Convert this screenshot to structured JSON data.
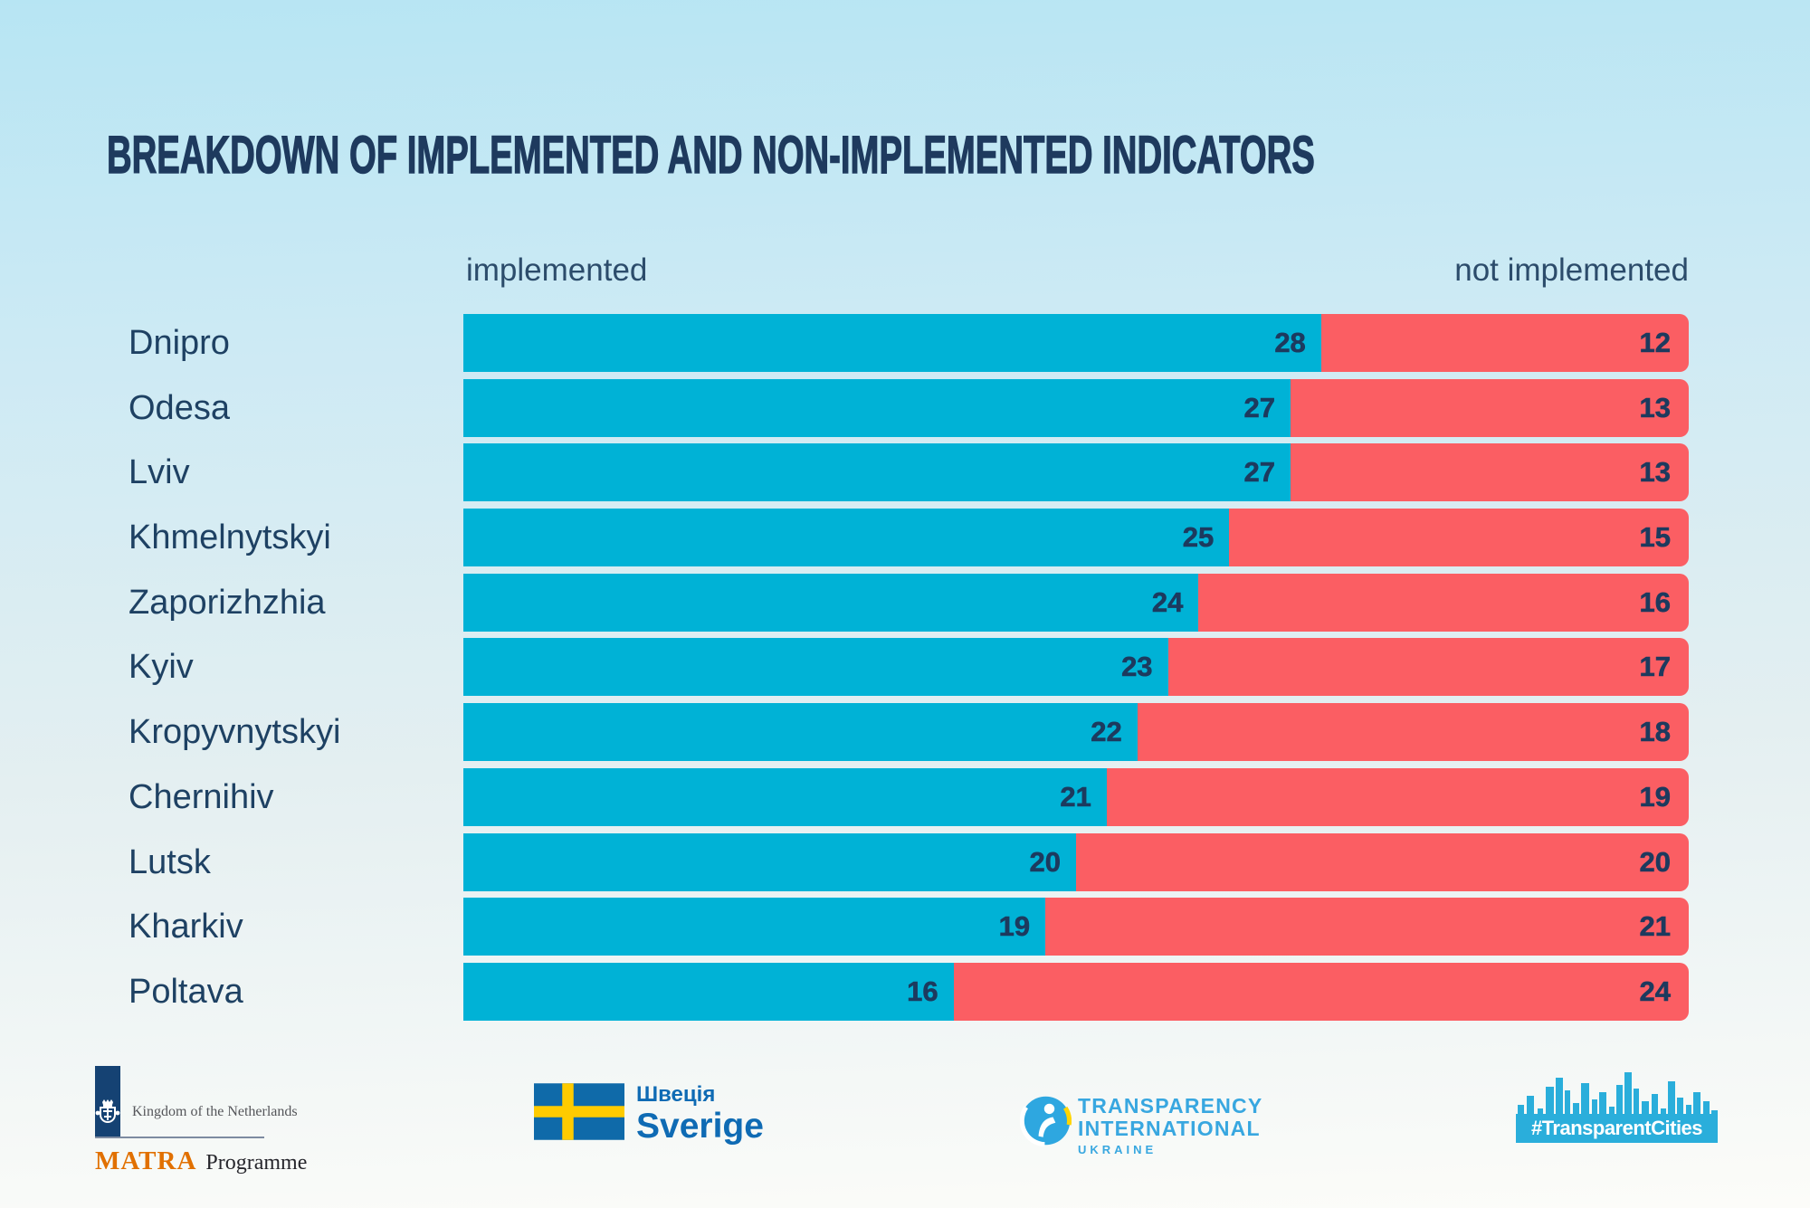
{
  "title": "BREAKDOWN OF IMPLEMENTED AND NON-IMPLEMENTED INDICATORS",
  "legend": {
    "implemented": "implemented",
    "not_implemented": "not implemented"
  },
  "chart_data": {
    "type": "bar",
    "stacked": true,
    "orientation": "horizontal",
    "x_max": 40,
    "axis": "hidden",
    "value_labels": "inside-end",
    "categories": [
      "Dnipro",
      "Odesa",
      "Lviv",
      "Khmelnytskyi",
      "Zaporizhzhia",
      "Kyiv",
      "Kropyvnytskyi",
      "Chernihiv",
      "Lutsk",
      "Kharkiv",
      "Poltava"
    ],
    "series": [
      {
        "name": "implemented",
        "color": "#00b2d6",
        "values": [
          28,
          27,
          27,
          25,
          24,
          23,
          22,
          21,
          20,
          19,
          16
        ]
      },
      {
        "name": "not implemented",
        "color": "#fb5e63",
        "values": [
          12,
          13,
          13,
          15,
          16,
          17,
          18,
          19,
          20,
          21,
          24
        ]
      }
    ]
  },
  "footer": {
    "netherlands": {
      "name": "Kingdom of the Netherlands",
      "program": "MATRA",
      "program_suffix": "Programme",
      "icon": "dutch-coat-of-arms",
      "panel_color": "#154273",
      "brand_color": "#e17000"
    },
    "sweden": {
      "line1": "Швеція",
      "line2": "Sverige",
      "icon": "sweden-flag",
      "text_color": "#0f6bb4",
      "flag_blue": "#0f6aa9",
      "flag_yellow": "#fecb00"
    },
    "transparency_international": {
      "line1": "TRANSPARENCY",
      "line2": "INTERNATIONAL",
      "line3": "UKRAINE",
      "icon": "ti-globe",
      "color": "#38a7e0"
    },
    "transparent_cities": {
      "label": "#TransparentCities",
      "icon": "city-skyline",
      "color": "#2aaedb"
    }
  },
  "colors": {
    "background_top": "#b7e5f3",
    "background_bottom": "#fcfcf9",
    "title": "#1e3a5e",
    "bar_label": "#1e4163",
    "bar_value": "#1d3a5e",
    "legend": "#2c4c6b",
    "implemented": "#00b2d6",
    "not_implemented": "#fb5e63"
  }
}
